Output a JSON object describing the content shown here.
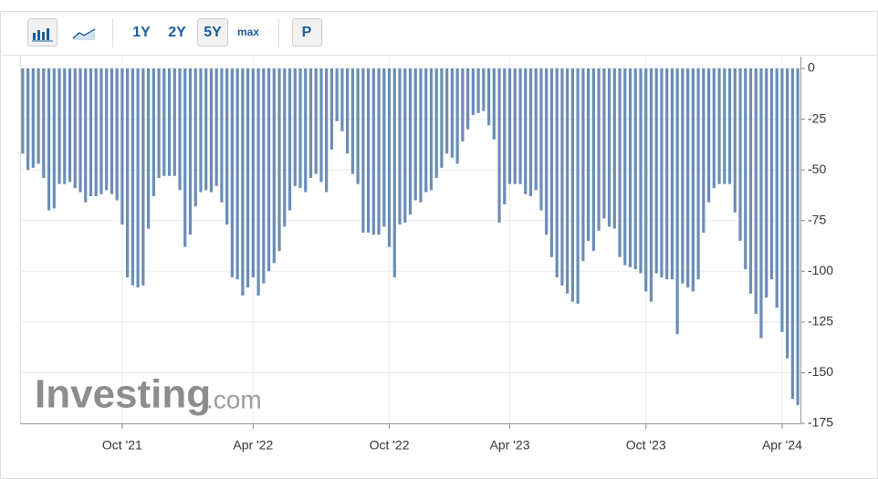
{
  "toolbar": {
    "ranges": [
      "1Y",
      "2Y",
      "5Y",
      "max"
    ],
    "selected_range": "5Y",
    "extra_button": "P"
  },
  "watermark": {
    "brand": "Investing",
    "suffix": ".com"
  },
  "chart_data": {
    "type": "bar",
    "color": "#6a8db5",
    "grid": true,
    "y_axis_side": "right",
    "ylim": [
      -175,
      0
    ],
    "yticks": [
      0,
      -25,
      -50,
      -75,
      -100,
      -125,
      -150,
      -175
    ],
    "categories": [
      null,
      null,
      null,
      null,
      null,
      null,
      null,
      null,
      null,
      null,
      null,
      null,
      null,
      null,
      null,
      null,
      null,
      null,
      null,
      "Oct '21",
      null,
      null,
      null,
      null,
      null,
      null,
      null,
      null,
      null,
      null,
      null,
      null,
      null,
      null,
      null,
      null,
      null,
      null,
      null,
      null,
      null,
      null,
      null,
      null,
      "Apr '22",
      null,
      null,
      null,
      null,
      null,
      null,
      null,
      null,
      null,
      null,
      null,
      null,
      null,
      null,
      null,
      null,
      null,
      null,
      null,
      null,
      null,
      null,
      null,
      null,
      null,
      "Oct '22",
      null,
      null,
      null,
      null,
      null,
      null,
      null,
      null,
      null,
      null,
      null,
      null,
      null,
      null,
      null,
      null,
      null,
      null,
      null,
      null,
      null,
      null,
      "Apr '23",
      null,
      null,
      null,
      null,
      null,
      null,
      null,
      null,
      null,
      null,
      null,
      null,
      null,
      null,
      null,
      null,
      null,
      null,
      null,
      null,
      null,
      null,
      null,
      null,
      null,
      "Oct '23",
      null,
      null,
      null,
      null,
      null,
      null,
      null,
      null,
      null,
      null,
      null,
      null,
      null,
      null,
      null,
      null,
      null,
      null,
      null,
      null,
      null,
      null,
      null,
      null,
      null,
      "Apr '24",
      null,
      null,
      null
    ],
    "values": [
      -42,
      -50,
      -49,
      -47,
      -54,
      -70,
      -69,
      -57,
      -57,
      -56,
      -59,
      -61,
      -66,
      -63,
      -63,
      -62,
      -60,
      -62,
      -65,
      -77,
      -103,
      -107,
      -108,
      -107,
      -79,
      -63,
      -54,
      -53,
      -53,
      -53,
      -60,
      -88,
      -82,
      -68,
      -61,
      -60,
      -61,
      -58,
      -66,
      -77,
      -103,
      -104,
      -112,
      -108,
      -103,
      -112,
      -106,
      -100,
      -96,
      -90,
      -78,
      -70,
      -58,
      -59,
      -61,
      -54,
      -52,
      -56,
      -61,
      -40,
      -26,
      -31,
      -42,
      -52,
      -57,
      -81,
      -81,
      -82,
      -82,
      -78,
      -88,
      -103,
      -77,
      -76,
      -72,
      -65,
      -66,
      -61,
      -60,
      -54,
      -49,
      -42,
      -44,
      -47,
      -36,
      -30,
      -23,
      -22,
      -21,
      -28,
      -35,
      -76,
      -67,
      -57,
      -57,
      -57,
      -62,
      -63,
      -60,
      -70,
      -82,
      -93,
      -103,
      -107,
      -111,
      -115,
      -116,
      -95,
      -85,
      -90,
      -80,
      -74,
      -78,
      -79,
      -93,
      -97,
      -98,
      -99,
      -101,
      -110,
      -115,
      -101,
      -103,
      -104,
      -104,
      -131,
      -106,
      -108,
      -110,
      -104,
      -81,
      -66,
      -59,
      -57,
      -57,
      -57,
      -71,
      -85,
      -99,
      -111,
      -121,
      -133,
      -113,
      -104,
      -118,
      -130,
      -143,
      -163,
      -166
    ]
  }
}
